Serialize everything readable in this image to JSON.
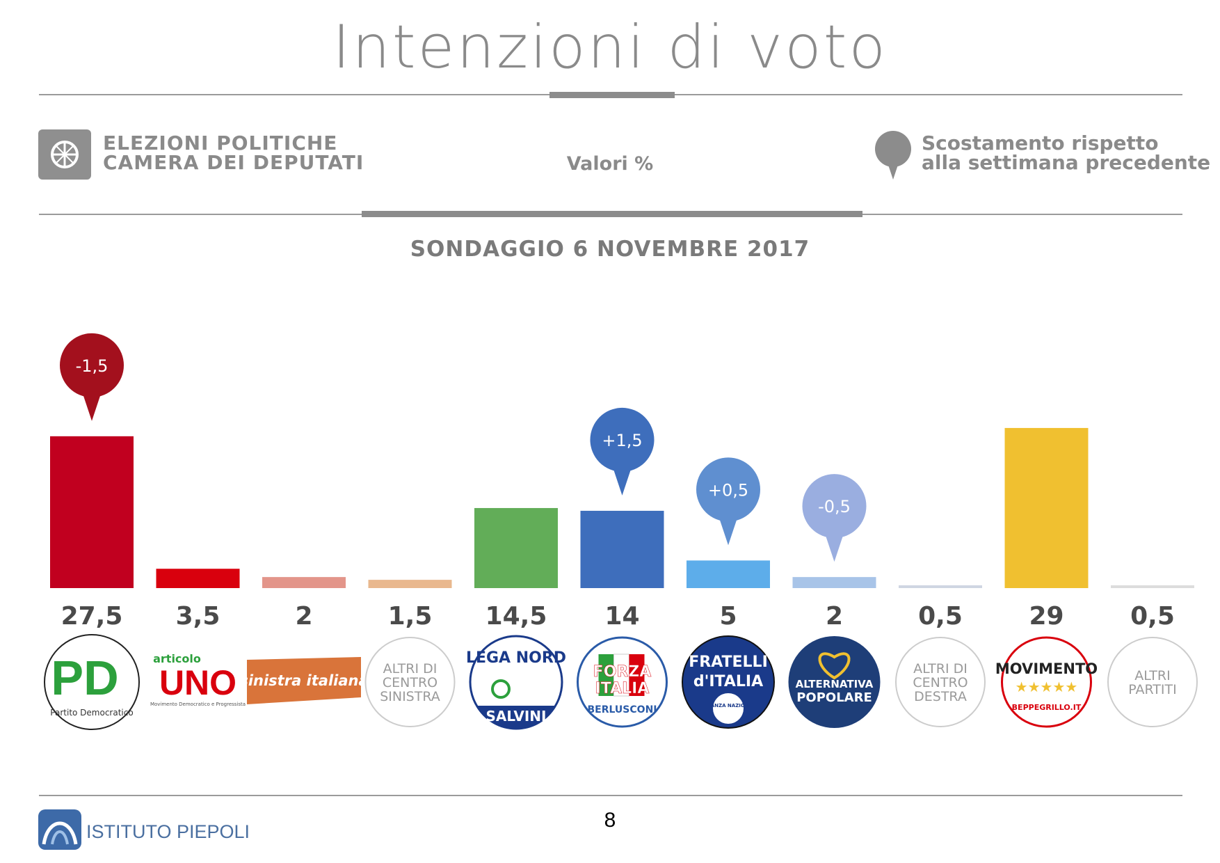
{
  "title": "Intenzioni di voto",
  "header": {
    "left_line1": "ELEZIONI POLITICHE",
    "left_line2": "CAMERA DEI DEPUTATI",
    "middle": "Valori %",
    "right_line1": "Scostamento rispetto",
    "right_line2": "alla settimana precedente"
  },
  "survey_title": "SONDAGGIO 6 NOVEMBRE 2017",
  "footer": {
    "org": "ISTITUTO PIEPOLI",
    "page": "8"
  },
  "chart_data": {
    "type": "bar",
    "categories": [
      "PD",
      "Articolo UNO",
      "Sinistra Italiana",
      "Altri di centro sinistra",
      "Lega Nord",
      "Forza Italia",
      "Fratelli d'Italia",
      "Alternativa Popolare",
      "Altri di centro destra",
      "Movimento 5 Stelle",
      "Altri partiti"
    ],
    "values": [
      27.5,
      3.5,
      2,
      1.5,
      14.5,
      14,
      5,
      2,
      0.5,
      29,
      0.5
    ],
    "value_labels": [
      "27,5",
      "3,5",
      "2",
      "1,5",
      "14,5",
      "14",
      "5",
      "2",
      "0,5",
      "29",
      "0,5"
    ],
    "colors": [
      "#c1001f",
      "#d9000d",
      "#e3958a",
      "#e9b88e",
      "#62ad58",
      "#3e6ebc",
      "#5dadea",
      "#a8c4e8",
      "#cfd6e2",
      "#f0c030",
      "#dcdcdc"
    ],
    "changes": [
      {
        "index": 0,
        "label": "-1,5",
        "color": "#a3101d"
      },
      {
        "index": 5,
        "label": "+1,5",
        "color": "#3e6ebc"
      },
      {
        "index": 6,
        "label": "+0,5",
        "color": "#5f8fd0"
      },
      {
        "index": 7,
        "label": "-0,5",
        "color": "#9aaee0"
      }
    ],
    "logos": [
      {
        "type": "pd",
        "line1": "PD",
        "line2": "Partito Democratico"
      },
      {
        "type": "uno",
        "line1": "articolo",
        "line2": "UNO",
        "line3": "Movimento Democratico e Progressista"
      },
      {
        "type": "si",
        "line1": "sinistra italiana"
      },
      {
        "type": "circle",
        "lines": [
          "ALTRI DI",
          "CENTRO",
          "SINISTRA"
        ]
      },
      {
        "type": "lega",
        "line1": "LEGA NORD",
        "line2": "SALVINI"
      },
      {
        "type": "fi",
        "line1": "FORZA",
        "line2": "ITALIA",
        "line3": "BERLUSCONI"
      },
      {
        "type": "fdi",
        "line1": "FRATELLI",
        "line2": "d'ITALIA",
        "line3": "ALLEANZA NAZIONALE"
      },
      {
        "type": "ap",
        "line1": "ALTERNATIVA",
        "line2": "POPOLARE"
      },
      {
        "type": "circle",
        "lines": [
          "ALTRI DI",
          "CENTRO",
          "DESTRA"
        ]
      },
      {
        "type": "m5s",
        "line1": "MOVIMENTO",
        "line2": "BEPPEGRILLO.IT"
      },
      {
        "type": "circle",
        "lines": [
          "ALTRI",
          "PARTITI"
        ]
      }
    ],
    "ylim": [
      0,
      30
    ]
  }
}
